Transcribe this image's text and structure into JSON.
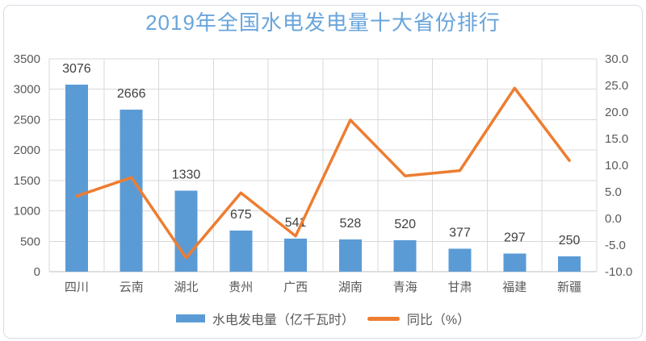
{
  "chart_data": {
    "type": "bar",
    "subtype": "combo-bar-line-dual-axis",
    "title": "2019年全国水电发电量十大省份排行",
    "categories": [
      "四川",
      "云南",
      "湖北",
      "贵州",
      "广西",
      "湖南",
      "青海",
      "甘肃",
      "福建",
      "新疆"
    ],
    "series": [
      {
        "name": "水电发电量（亿千瓦时）",
        "type": "bar",
        "axis": "left",
        "color": "#5B9BD5",
        "values": [
          3076,
          2666,
          1330,
          675,
          541,
          528,
          520,
          377,
          297,
          250
        ],
        "data_labels_shown": true
      },
      {
        "name": "同比（%）",
        "type": "line",
        "axis": "right",
        "color": "#ED7D31",
        "values": [
          4.2,
          7.7,
          -7.4,
          4.8,
          -3.3,
          18.5,
          8.0,
          9.0,
          24.5,
          10.9
        ],
        "data_labels_shown": false
      }
    ],
    "left_axis": {
      "min": 0,
      "max": 3500,
      "step": 500,
      "tick_labels": [
        "0",
        "500",
        "1000",
        "1500",
        "2000",
        "2500",
        "3000",
        "3500"
      ]
    },
    "right_axis": {
      "min": -10,
      "max": 30,
      "step": 5,
      "decimals": 1,
      "tick_labels": [
        "-10.0",
        "-5.0",
        "0.0",
        "5.0",
        "10.0",
        "15.0",
        "20.0",
        "25.0",
        "30.0"
      ]
    },
    "grid": true,
    "vertical_grid": true,
    "legend_position": "bottom"
  },
  "colors": {
    "bar": "#5B9BD5",
    "line": "#ED7D31",
    "title_text": "#69A5DB",
    "axis_text": "#595959",
    "data_label_text": "#404040",
    "gridline": "#D9D9D9",
    "axis_line": "#BFBFBF",
    "frame_border": "#D8DDE3"
  }
}
